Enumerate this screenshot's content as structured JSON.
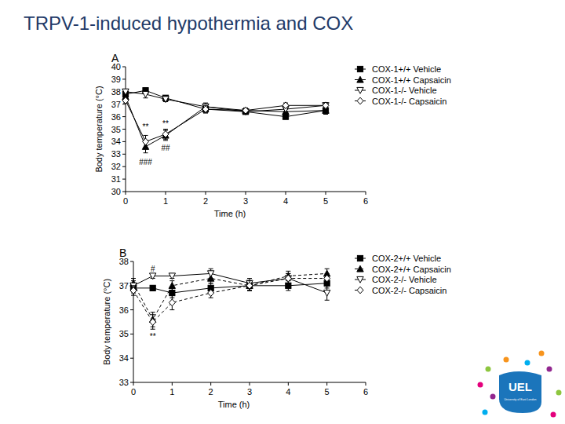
{
  "slide_title": "TRPV-1-induced hypothermia and COX",
  "logo": {
    "text": "UEL",
    "subtitle": "University of East London"
  },
  "chart_data": [
    {
      "type": "line",
      "label": "A",
      "x_label": "Time (h)",
      "y_label": "Body temperature (°C)",
      "x": [
        0,
        0.5,
        1,
        2,
        3,
        4,
        5
      ],
      "xlim": [
        0,
        6
      ],
      "xticks": [
        0,
        1,
        2,
        3,
        4,
        5,
        6
      ],
      "ylim": [
        30,
        40
      ],
      "yticks": [
        30,
        31,
        32,
        33,
        34,
        35,
        36,
        37,
        38,
        39,
        40
      ],
      "grid": false,
      "legend": "right",
      "series": [
        {
          "name": "COX-1+/+ Vehicle",
          "color": "#000000",
          "marker": "square",
          "line_style": "solid",
          "values": [
            37.8,
            38.1,
            37.5,
            36.6,
            36.4,
            36.0,
            36.5
          ],
          "errors": [
            0.2,
            0.2,
            0.2,
            0.3,
            0.2,
            0.2,
            0.3
          ]
        },
        {
          "name": "COX-1+/+ Capsaicin",
          "color": "#000000",
          "marker": "triangle",
          "line_style": "solid",
          "values": [
            37.6,
            33.6,
            34.5,
            36.8,
            36.5,
            36.4,
            36.5
          ],
          "errors": [
            0.2,
            0.5,
            0.4,
            0.3,
            0.2,
            0.2,
            0.3
          ]
        },
        {
          "name": "COX-1-/- Vehicle",
          "color": "#000000",
          "marker": "triangle-down-open",
          "line_style": "solid",
          "values": [
            38.0,
            37.8,
            37.4,
            36.8,
            36.4,
            36.6,
            36.9
          ],
          "errors": [
            0.2,
            0.3,
            0.2,
            0.2,
            0.2,
            0.2,
            0.2
          ]
        },
        {
          "name": "COX-1-/- Capsaicin",
          "color": "#000000",
          "marker": "diamond-open",
          "line_style": "solid",
          "values": [
            37.3,
            34.0,
            34.6,
            36.6,
            36.5,
            36.9,
            36.9
          ],
          "errors": [
            0.2,
            0.5,
            0.4,
            0.3,
            0.2,
            0.2,
            0.2
          ]
        }
      ],
      "annotations": [
        {
          "text": "**",
          "x": 0.5,
          "y": 35.2
        },
        {
          "text": "###",
          "x": 0.5,
          "y": 32.4
        },
        {
          "text": "**",
          "x": 1,
          "y": 35.5
        },
        {
          "text": "##",
          "x": 1,
          "y": 33.5
        }
      ]
    },
    {
      "type": "line",
      "label": "B",
      "x_label": "Time (h)",
      "y_label": "Body temperature (°C)",
      "x": [
        0,
        0.5,
        1,
        2,
        3,
        4,
        5
      ],
      "xlim": [
        0,
        6
      ],
      "xticks": [
        0,
        1,
        2,
        3,
        4,
        5,
        6
      ],
      "ylim": [
        33,
        38
      ],
      "yticks": [
        33,
        34,
        35,
        36,
        37,
        38
      ],
      "grid": false,
      "legend": "right",
      "series": [
        {
          "name": "COX-2+/+ Vehicle",
          "color": "#000000",
          "marker": "square",
          "line_style": "solid",
          "values": [
            36.9,
            36.9,
            36.7,
            36.9,
            37.0,
            37.0,
            37.1
          ],
          "errors": [
            0.2,
            0.1,
            0.2,
            0.2,
            0.2,
            0.2,
            0.2
          ]
        },
        {
          "name": "COX-2+/+ Capsaicin",
          "color": "#000000",
          "marker": "triangle",
          "line_style": "dashed",
          "values": [
            37.1,
            35.6,
            37.0,
            37.3,
            37.0,
            37.4,
            37.5
          ],
          "errors": [
            0.2,
            0.3,
            0.2,
            0.2,
            0.2,
            0.2,
            0.2
          ]
        },
        {
          "name": "COX-2-/- Vehicle",
          "color": "#000000",
          "marker": "triangle-down-open",
          "line_style": "solid",
          "values": [
            37.0,
            37.4,
            37.4,
            37.5,
            37.1,
            37.3,
            36.7
          ],
          "errors": [
            0.2,
            0.1,
            0.1,
            0.2,
            0.2,
            0.2,
            0.3
          ]
        },
        {
          "name": "COX-2-/- Capsaicin",
          "color": "#000000",
          "marker": "diamond-open",
          "line_style": "dashed",
          "values": [
            36.8,
            35.5,
            36.3,
            36.7,
            37.0,
            37.3,
            37.3
          ],
          "errors": [
            0.2,
            0.3,
            0.3,
            0.2,
            0.2,
            0.2,
            0.2
          ]
        }
      ],
      "annotations": [
        {
          "text": "#",
          "x": 0.5,
          "y": 37.7
        },
        {
          "text": "**",
          "x": 0.5,
          "y": 34.9
        }
      ]
    }
  ]
}
